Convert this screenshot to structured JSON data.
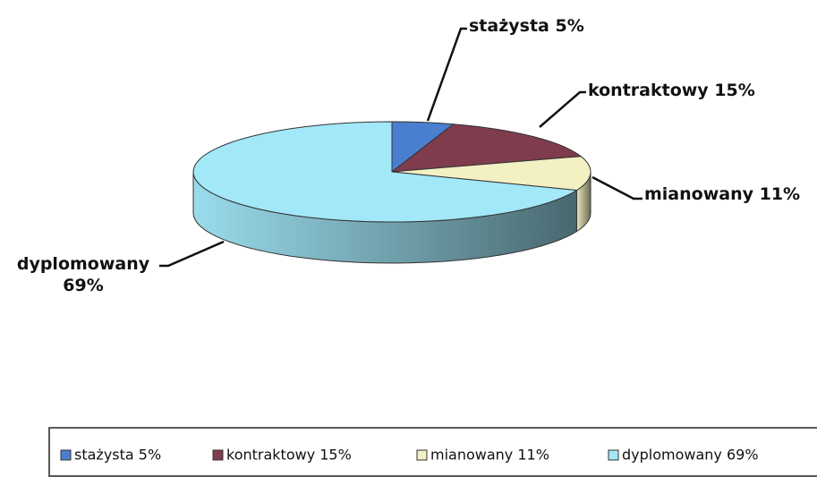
{
  "chart_data": {
    "type": "pie",
    "categories": [
      "stażysta 5%",
      "kontraktowy 15%",
      "mianowany 11%",
      "dyplomowany 69%"
    ],
    "values": [
      5,
      15,
      11,
      69
    ],
    "colors": [
      "#4a7fd0",
      "#7e3c4c",
      "#f3f1c4",
      "#a2e8f8"
    ]
  }
}
